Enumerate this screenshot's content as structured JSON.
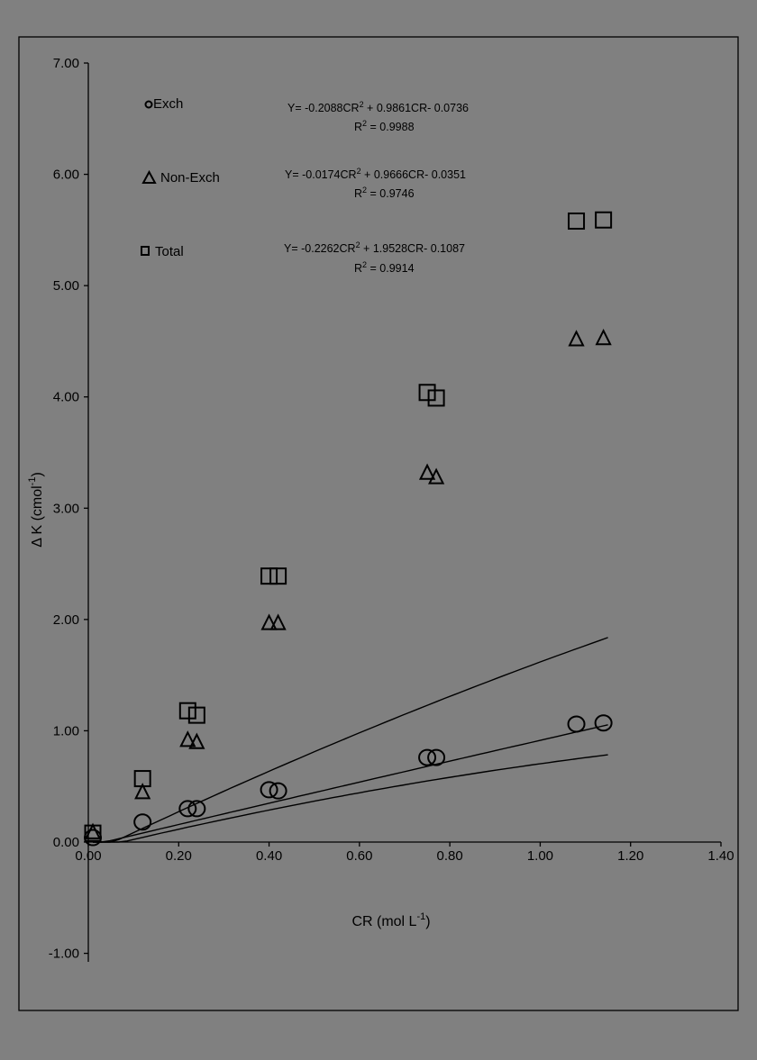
{
  "chart_data": {
    "type": "scatter",
    "xlabel": "CR (mol L",
    "xlabel_sup": "-1",
    "xlabel_end": ")",
    "ylabel": "Δ K (cmol",
    "ylabel_sup": "-1",
    "ylabel_end": ")",
    "xlim": [
      0,
      1.4
    ],
    "ylim": [
      -1,
      7
    ],
    "x_ticks": [
      {
        "value": 0.0,
        "label": "0.00"
      },
      {
        "value": 0.2,
        "label": "0.20"
      },
      {
        "value": 0.4,
        "label": "0.40"
      },
      {
        "value": 0.6,
        "label": "0.60"
      },
      {
        "value": 0.8,
        "label": "0.80"
      },
      {
        "value": 1.0,
        "label": "1.00"
      },
      {
        "value": 1.2,
        "label": "1.20"
      },
      {
        "value": 1.4,
        "label": "1.40"
      }
    ],
    "y_ticks": [
      {
        "value": 7,
        "label": "7.00"
      },
      {
        "value": 6,
        "label": "6.00"
      },
      {
        "value": 5,
        "label": "5.00"
      },
      {
        "value": 4,
        "label": "4.00"
      },
      {
        "value": 3,
        "label": "3.00"
      },
      {
        "value": 2,
        "label": "2.00"
      },
      {
        "value": 1,
        "label": "1.00"
      },
      {
        "value": 0,
        "label": "0.00"
      },
      {
        "value": -1,
        "label": "-1.00"
      }
    ],
    "grid": false,
    "legend": "top-left",
    "series": [
      {
        "name": "Exch",
        "marker": "circle",
        "x": [
          0.01,
          0.12,
          0.22,
          0.24,
          0.4,
          0.42,
          0.75,
          0.77,
          1.08,
          1.14
        ],
        "y": [
          0.04,
          0.18,
          0.3,
          0.3,
          0.47,
          0.46,
          0.76,
          0.76,
          1.06,
          1.07
        ],
        "fit": {
          "a": -0.2088,
          "b": 0.9861,
          "c": -0.0736,
          "x_range": [
            0.01,
            1.15
          ]
        },
        "equation": "Y= -0.2088CR",
        "equation_rest": " + 0.9861CR- 0.0736",
        "r2": " = 0.9988"
      },
      {
        "name": "Non-Exch",
        "marker": "triangle",
        "x": [
          0.01,
          0.12,
          0.22,
          0.24,
          0.4,
          0.42,
          0.75,
          0.77,
          1.08,
          1.14
        ],
        "y": [
          0.09,
          0.45,
          0.92,
          0.9,
          1.97,
          1.97,
          3.32,
          3.28,
          4.52,
          4.53
        ],
        "fit": {
          "a": -0.0174,
          "b": 0.9666,
          "c": -0.0351,
          "x_range": [
            0.01,
            1.15
          ]
        },
        "equation": "Y= -0.0174CR",
        "equation_rest": " + 0.9666CR- 0.0351",
        "r2": " = 0.9746"
      },
      {
        "name": "Total",
        "marker": "square",
        "x": [
          0.01,
          0.12,
          0.22,
          0.24,
          0.4,
          0.42,
          0.75,
          0.77,
          1.08,
          1.14
        ],
        "y": [
          0.08,
          0.57,
          1.18,
          1.14,
          2.39,
          2.39,
          4.04,
          3.99,
          5.58,
          5.59
        ],
        "fit": {
          "a": -0.2262,
          "b": 1.9528,
          "c": -0.1087,
          "x_range": [
            0.01,
            1.15
          ]
        },
        "equation": "Y= -0.2262CR",
        "equation_rest": " + 1.9528CR- 0.1087",
        "r2": " = 0.9914"
      }
    ]
  }
}
